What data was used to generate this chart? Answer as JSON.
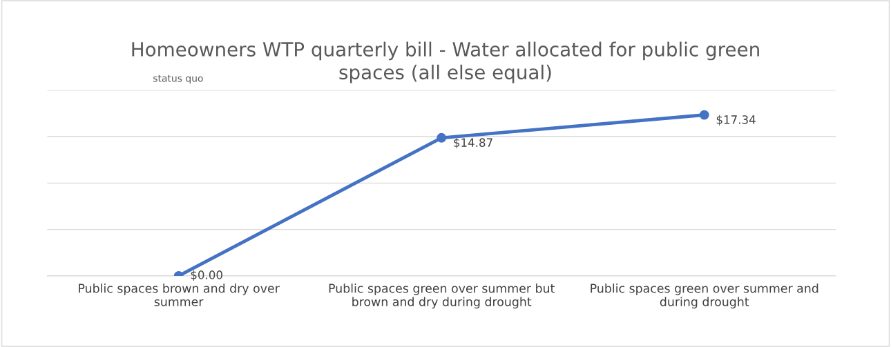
{
  "chart_data": {
    "type": "line",
    "title": "Homeowners WTP quarterly bill - Water allocated for public green spaces (all else equal)",
    "categories": [
      "Public spaces brown and dry over summer",
      "Public spaces green over summer but brown and dry during drought",
      "Public spaces green over summer and during drought"
    ],
    "series": [
      {
        "color": "#4472c4",
        "values": [
          0.0,
          14.87,
          17.34
        ],
        "value_labels": [
          "$0.00",
          "$14.87",
          "$17.34"
        ]
      }
    ],
    "ylim": [
      0,
      20
    ],
    "yticks": [
      {
        "value": 0,
        "label": null
      },
      {
        "value": 5,
        "label": null
      },
      {
        "value": 10,
        "label": null
      },
      {
        "value": 15,
        "label": null
      },
      {
        "value": 20,
        "label": null
      }
    ],
    "tick_labels": "x",
    "grid": "y",
    "marker": "circle",
    "line_style": "solid",
    "legend": false,
    "annotations": [
      "status quo"
    ]
  }
}
